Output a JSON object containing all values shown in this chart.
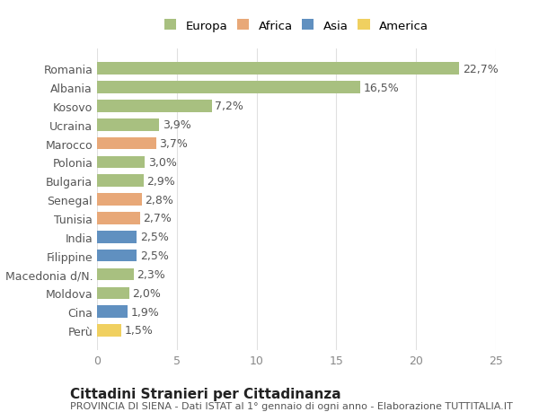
{
  "categories": [
    "Romania",
    "Albania",
    "Kosovo",
    "Ucraina",
    "Marocco",
    "Polonia",
    "Bulgaria",
    "Senegal",
    "Tunisia",
    "India",
    "Filippine",
    "Macedonia d/N.",
    "Moldova",
    "Cina",
    "Perù"
  ],
  "values": [
    22.7,
    16.5,
    7.2,
    3.9,
    3.7,
    3.0,
    2.9,
    2.8,
    2.7,
    2.5,
    2.5,
    2.3,
    2.0,
    1.9,
    1.5
  ],
  "labels": [
    "22,7%",
    "16,5%",
    "7,2%",
    "3,9%",
    "3,7%",
    "3,0%",
    "2,9%",
    "2,8%",
    "2,7%",
    "2,5%",
    "2,5%",
    "2,3%",
    "2,0%",
    "1,9%",
    "1,5%"
  ],
  "regions": [
    "Europa",
    "Europa",
    "Europa",
    "Europa",
    "Africa",
    "Europa",
    "Europa",
    "Africa",
    "Africa",
    "Asia",
    "Asia",
    "Europa",
    "Europa",
    "Asia",
    "America"
  ],
  "region_colors": {
    "Europa": "#a8c080",
    "Africa": "#e8a878",
    "Asia": "#6090c0",
    "America": "#f0d060"
  },
  "legend_order": [
    "Europa",
    "Africa",
    "Asia",
    "America"
  ],
  "title": "Cittadini Stranieri per Cittadinanza",
  "subtitle": "PROVINCIA DI SIENA - Dati ISTAT al 1° gennaio di ogni anno - Elaborazione TUTTITALIA.IT",
  "xlim": [
    0,
    25
  ],
  "xticks": [
    0,
    5,
    10,
    15,
    20,
    25
  ],
  "background_color": "#ffffff",
  "grid_color": "#e0e0e0",
  "bar_height": 0.65,
  "label_fontsize": 9,
  "tick_fontsize": 9,
  "title_fontsize": 11,
  "subtitle_fontsize": 8
}
